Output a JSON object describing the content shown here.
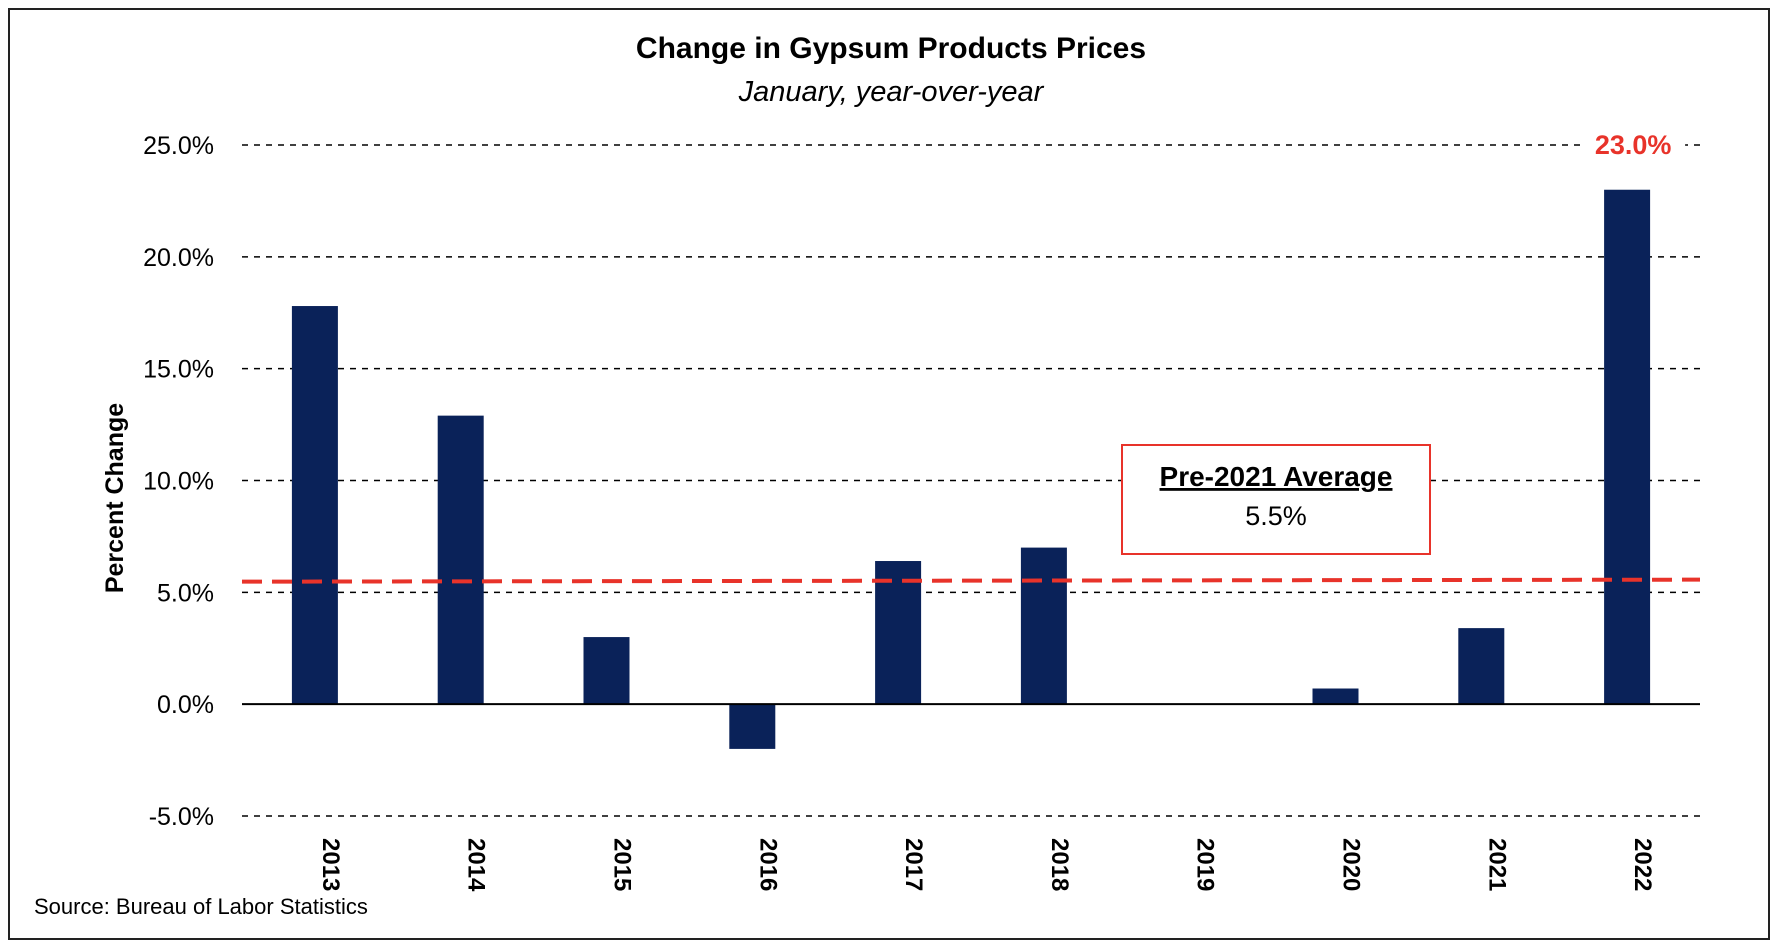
{
  "chart_data": {
    "type": "bar",
    "title": "Change in Gypsum Products Prices",
    "subtitle": "January, year-over-year",
    "ylabel": "Percent Change",
    "xlabel": "",
    "categories": [
      "2013",
      "2014",
      "2015",
      "2016",
      "2017",
      "2018",
      "2019",
      "2020",
      "2021",
      "2022"
    ],
    "values": [
      17.8,
      12.9,
      3.0,
      -2.0,
      6.4,
      7.0,
      0.0,
      0.7,
      3.4,
      23.0
    ],
    "ylim": [
      -5,
      25
    ],
    "yticks": [
      -5,
      0,
      5,
      10,
      15,
      20,
      25
    ],
    "ytick_labels": [
      "-5.0%",
      "0.0%",
      "5.0%",
      "10.0%",
      "15.0%",
      "20.0%",
      "25.0%"
    ],
    "grid": "horizontal dashed",
    "reference_line": {
      "value": 5.5,
      "style": "dashed",
      "color": "#e8332a"
    },
    "average_box": {
      "title": "Pre-2021 Average",
      "value": "5.5%"
    },
    "highlight_label": {
      "category": "2022",
      "text": "23.0%"
    },
    "source": "Source:  Bureau of Labor Statistics",
    "colors": {
      "bar": "#0a2259",
      "accent": "#e8332a",
      "grid": "#000000"
    }
  }
}
